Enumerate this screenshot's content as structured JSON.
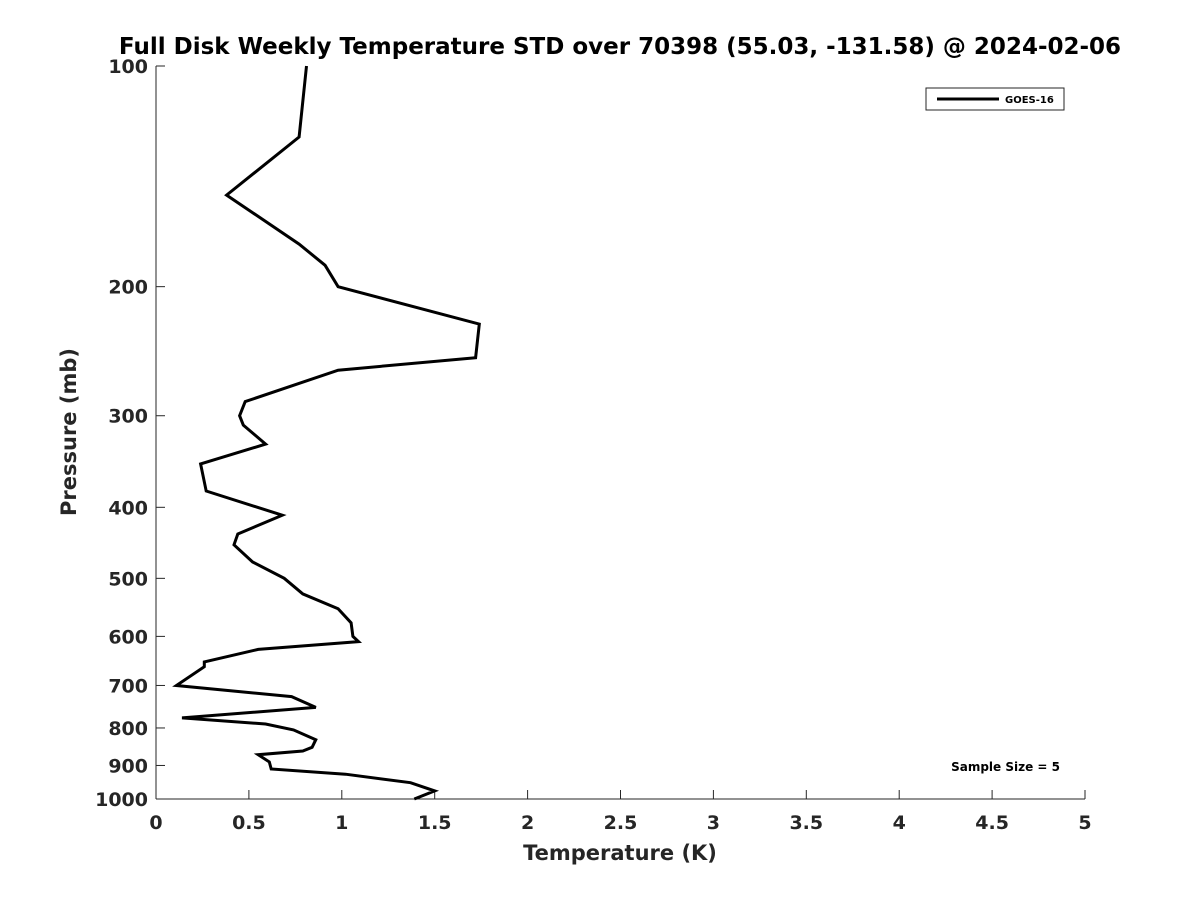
{
  "chart_data": {
    "type": "line",
    "title": "Full Disk Weekly Temperature STD over 70398 (55.03, -131.58) @ 2024-02-06",
    "xlabel": "Temperature (K)",
    "ylabel": "Pressure (mb)",
    "xlim": [
      0,
      5
    ],
    "ylim": [
      100,
      1000
    ],
    "y_scale": "log",
    "y_reversed": true,
    "grid": false,
    "legend_position": "top-right",
    "x_ticks": [
      "0",
      "0.5",
      "1",
      "1.5",
      "2",
      "2.5",
      "3",
      "3.5",
      "4",
      "4.5",
      "5"
    ],
    "y_ticks": [
      "100",
      "200",
      "300",
      "400",
      "500",
      "600",
      "700",
      "800",
      "900",
      "1000"
    ],
    "annotation": "Sample Size = 5",
    "series": [
      {
        "name": "GOES-16",
        "color": "#000000",
        "x": [
          0.81,
          0.77,
          0.38,
          0.77,
          0.91,
          0.98,
          1.74,
          1.72,
          0.98,
          0.48,
          0.45,
          0.47,
          0.59,
          0.24,
          0.27,
          0.68,
          0.44,
          0.42,
          0.52,
          0.69,
          0.79,
          0.98,
          1.05,
          1.06,
          1.09,
          0.55,
          0.26,
          0.26,
          0.11,
          0.73,
          0.86,
          0.14,
          0.59,
          0.74,
          0.86,
          0.84,
          0.79,
          0.55,
          0.61,
          0.62,
          1.02,
          1.37,
          1.5,
          1.39
        ],
        "y": [
          100,
          125,
          150,
          175,
          187,
          200,
          225,
          250,
          260,
          287,
          300,
          309,
          328,
          349,
          380,
          410,
          435,
          450,
          475,
          500,
          525,
          550,
          575,
          600,
          610,
          625,
          650,
          660,
          700,
          725,
          750,
          775,
          790,
          805,
          830,
          850,
          860,
          870,
          890,
          910,
          925,
          950,
          975,
          1000
        ]
      }
    ]
  }
}
